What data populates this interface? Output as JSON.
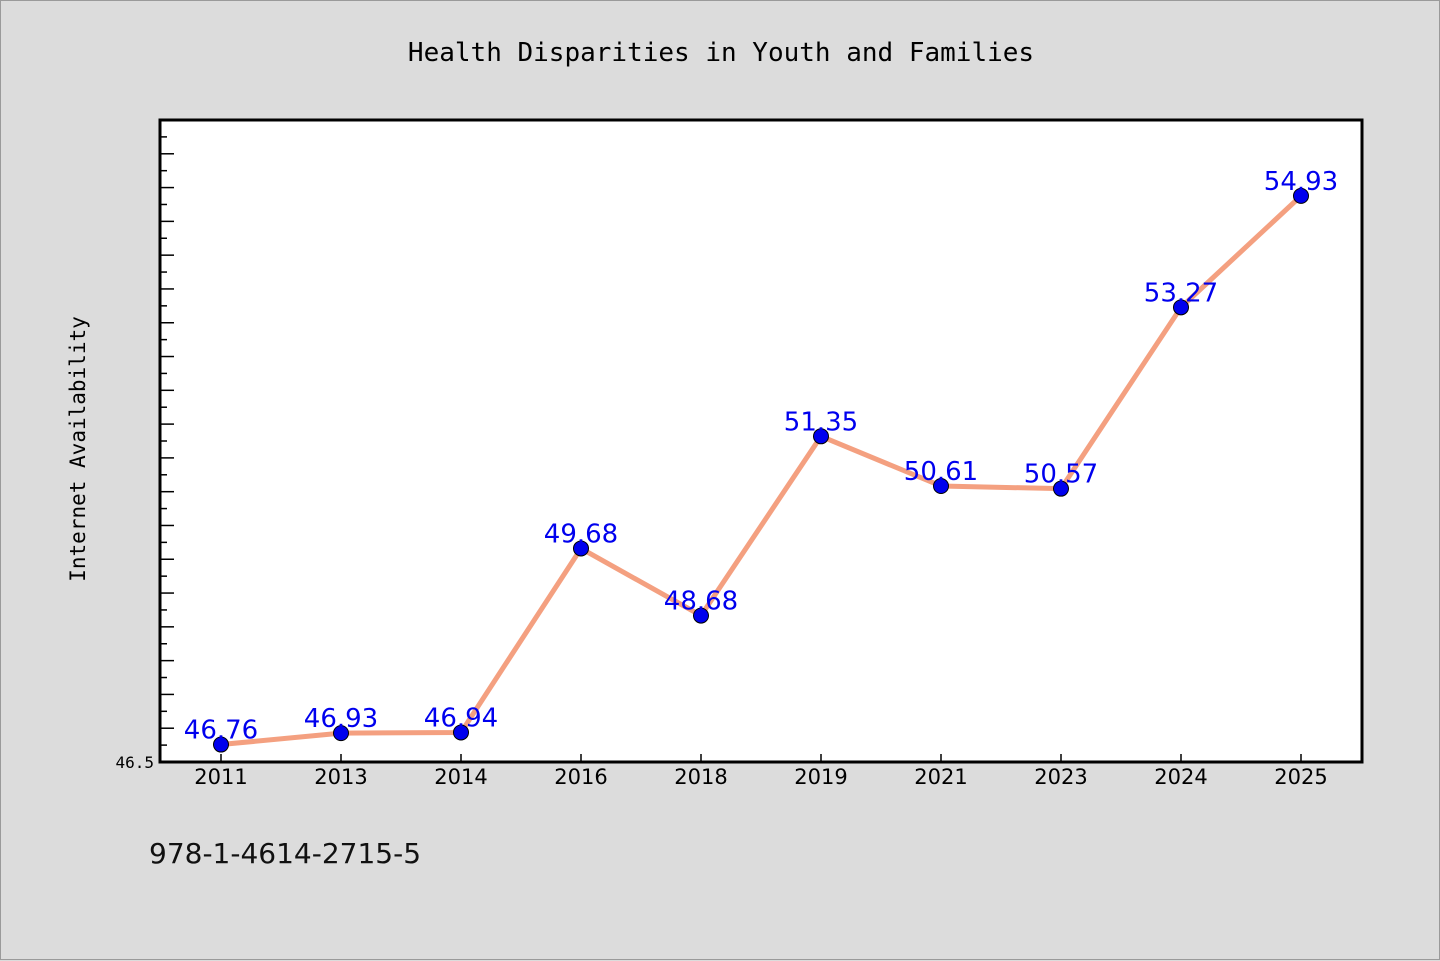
{
  "chart_data": {
    "type": "line",
    "title": "Health Disparities in Youth and Families",
    "xlabel": "",
    "ylabel": "Internet Availability",
    "categories": [
      "2011",
      "2013",
      "2014",
      "2016",
      "2018",
      "2019",
      "2021",
      "2023",
      "2024",
      "2025"
    ],
    "series": [
      {
        "values": [
          46.76,
          46.93,
          46.94,
          49.68,
          48.68,
          51.35,
          50.61,
          50.57,
          53.27,
          54.93
        ]
      }
    ],
    "data_labels": [
      "46.76",
      "46.93",
      "46.94",
      "49.68",
      "48.68",
      "51.35",
      "50.61",
      "50.57",
      "53.27",
      "54.93"
    ],
    "ylim": [
      46.5,
      56.06
    ],
    "y_tick_labels": [
      "46.5"
    ],
    "grid": false,
    "line_color": "#f4a080",
    "marker_color": "#0000ee",
    "label_color": "#0000ee",
    "background_color": "#dcdcdc"
  },
  "footer": {
    "isbn": "978-1-4614-2715-5"
  }
}
